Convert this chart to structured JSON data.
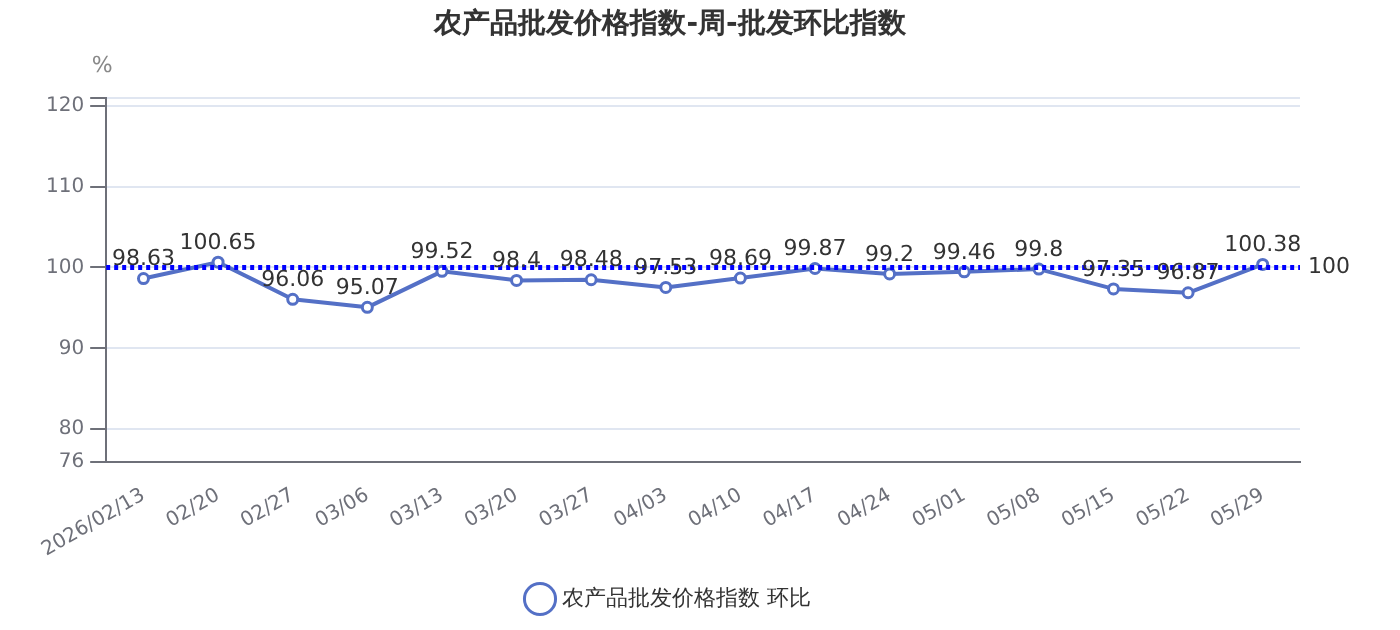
{
  "chart_data": {
    "type": "line",
    "title": "农产品批发价格指数-周-批发环比指数",
    "ylabel": "%",
    "categories": [
      "2026/02/13",
      "02/20",
      "02/27",
      "03/06",
      "03/13",
      "03/20",
      "03/27",
      "04/03",
      "04/10",
      "04/17",
      "04/24",
      "05/01",
      "05/08",
      "05/15",
      "05/22",
      "05/29"
    ],
    "series": [
      {
        "name": "农产品批发价格指数 环比",
        "color": "#5470c6",
        "values": [
          98.63,
          100.65,
          96.06,
          95.07,
          99.52,
          98.4,
          98.48,
          97.53,
          98.69,
          99.87,
          99.2,
          99.46,
          99.8,
          97.35,
          96.87,
          100.38
        ]
      }
    ],
    "ylim": [
      76,
      121
    ],
    "yticks": [
      76,
      80,
      90,
      100,
      110,
      120,
      {
        "value": 121,
        "label": null
      }
    ],
    "ref_lines": [
      {
        "axis": "y",
        "value": 100,
        "label": "100",
        "color": "#0000ff",
        "line_style": "dotted"
      }
    ],
    "data_labels": true,
    "grid": "y",
    "legend": "bottom",
    "marker": "circle",
    "line_style": "solid"
  }
}
